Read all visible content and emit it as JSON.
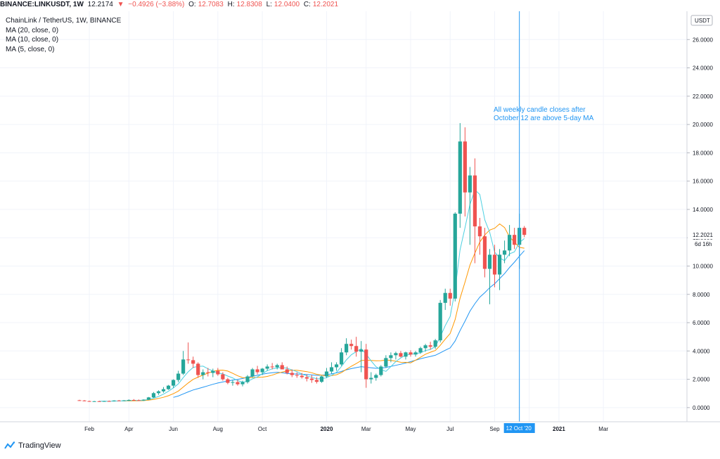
{
  "header": {
    "symbol": "BINANCE:LINKUSDT, 1W",
    "last": "12.2174",
    "change_arrow": "▼",
    "change": "−0.4926 (−3.88%)",
    "o_label": "O:",
    "o": "12.7083",
    "h_label": "H:",
    "h": "12.8308",
    "l_label": "L:",
    "l": "12.0400",
    "c_label": "C:",
    "c": "12.2021"
  },
  "legend": {
    "title": "ChainLink / TetherUS, 1W, BINANCE",
    "ma20": "MA (20, close, 0)",
    "ma10": "MA (10, close, 0)",
    "ma5": "MA (5, close, 0)"
  },
  "currency_button": "USDT",
  "price_tag": "12.2021",
  "countdown": "6d 16h",
  "crosshair_label": "12 Oct '20",
  "annotation": [
    "All weekly candle closes after",
    "October 12 are above 5-day MA"
  ],
  "brand": "TradingView",
  "colors": {
    "up": "#26a69a",
    "down": "#ef5350",
    "ma20": "#2196f3",
    "ma10": "#ff9800",
    "ma5": "#4dd0e1",
    "crosshair": "#2196f3",
    "grid": "#f0f3fa"
  },
  "chart_data": {
    "type": "candlestick",
    "ylim": [
      -1.0,
      28.0
    ],
    "ytick_labels": [
      "0.0000",
      "2.0000",
      "4.0000",
      "6.0000",
      "8.0000",
      "10.0000",
      "12.0000",
      "14.0000",
      "16.0000",
      "18.0000",
      "20.0000",
      "22.0000",
      "24.0000",
      "26.0000"
    ],
    "xtick_labels": [
      {
        "label": "Feb",
        "i": 2
      },
      {
        "label": "Apr",
        "i": 10
      },
      {
        "label": "Jun",
        "i": 19
      },
      {
        "label": "Aug",
        "i": 28
      },
      {
        "label": "Oct",
        "i": 37
      },
      {
        "label": "2020",
        "i": 50,
        "bold": true
      },
      {
        "label": "Mar",
        "i": 58
      },
      {
        "label": "May",
        "i": 67
      },
      {
        "label": "Jul",
        "i": 75
      },
      {
        "label": "Sep",
        "i": 84
      },
      {
        "label": "v",
        "i": 91
      },
      {
        "label": "2021",
        "i": 97,
        "bold": true
      },
      {
        "label": "Mar",
        "i": 106
      }
    ],
    "crosshair_index": 89,
    "series": [
      {
        "name": "LINKUSDT",
        "ohlc": [
          [
            0.52,
            0.55,
            0.47,
            0.5
          ],
          [
            0.5,
            0.53,
            0.44,
            0.46
          ],
          [
            0.46,
            0.49,
            0.42,
            0.44
          ],
          [
            0.44,
            0.47,
            0.41,
            0.45
          ],
          [
            0.45,
            0.48,
            0.42,
            0.43
          ],
          [
            0.43,
            0.48,
            0.41,
            0.46
          ],
          [
            0.46,
            0.5,
            0.43,
            0.45
          ],
          [
            0.45,
            0.52,
            0.43,
            0.5
          ],
          [
            0.5,
            0.54,
            0.46,
            0.48
          ],
          [
            0.48,
            0.53,
            0.45,
            0.51
          ],
          [
            0.51,
            0.58,
            0.47,
            0.54
          ],
          [
            0.54,
            0.6,
            0.49,
            0.52
          ],
          [
            0.52,
            0.57,
            0.48,
            0.5
          ],
          [
            0.5,
            0.58,
            0.47,
            0.56
          ],
          [
            0.56,
            0.75,
            0.53,
            0.72
          ],
          [
            0.72,
            1.1,
            0.68,
            1.02
          ],
          [
            1.02,
            1.22,
            0.9,
            1.15
          ],
          [
            1.15,
            1.45,
            1.05,
            1.3
          ],
          [
            1.3,
            1.6,
            1.25,
            1.55
          ],
          [
            1.55,
            2.0,
            1.4,
            1.95
          ],
          [
            1.95,
            2.6,
            1.8,
            2.4
          ],
          [
            2.4,
            4.0,
            2.3,
            3.4
          ],
          [
            3.4,
            4.6,
            3.1,
            3.35
          ],
          [
            3.35,
            3.6,
            2.8,
            3.1
          ],
          [
            3.1,
            3.2,
            2.1,
            2.3
          ],
          [
            2.3,
            2.7,
            2.0,
            2.5
          ],
          [
            2.5,
            2.8,
            2.2,
            2.45
          ],
          [
            2.45,
            2.75,
            2.15,
            2.6
          ],
          [
            2.6,
            2.8,
            2.25,
            2.35
          ],
          [
            2.35,
            2.5,
            1.9,
            2.0
          ],
          [
            2.0,
            2.1,
            1.65,
            1.75
          ],
          [
            1.75,
            1.95,
            1.55,
            1.8
          ],
          [
            1.8,
            1.95,
            1.55,
            1.65
          ],
          [
            1.65,
            1.9,
            1.5,
            1.8
          ],
          [
            1.8,
            2.3,
            1.7,
            2.2
          ],
          [
            2.2,
            2.8,
            2.1,
            2.7
          ],
          [
            2.7,
            2.95,
            2.35,
            2.5
          ],
          [
            2.5,
            2.8,
            2.3,
            2.75
          ],
          [
            2.75,
            3.05,
            2.6,
            2.9
          ],
          [
            2.9,
            3.15,
            2.7,
            2.85
          ],
          [
            2.85,
            3.1,
            2.7,
            3.0
          ],
          [
            3.0,
            3.2,
            2.8,
            2.7
          ],
          [
            2.7,
            2.9,
            2.35,
            2.45
          ],
          [
            2.45,
            2.7,
            2.15,
            2.3
          ],
          [
            2.3,
            2.5,
            2.1,
            2.25
          ],
          [
            2.25,
            2.45,
            2.05,
            2.15
          ],
          [
            2.15,
            2.35,
            1.85,
            2.05
          ],
          [
            2.05,
            2.3,
            1.75,
            1.95
          ],
          [
            1.95,
            2.15,
            1.7,
            1.82
          ],
          [
            1.82,
            2.25,
            1.75,
            2.2
          ],
          [
            2.2,
            2.8,
            2.1,
            2.55
          ],
          [
            2.55,
            3.2,
            2.4,
            2.85
          ],
          [
            2.85,
            3.2,
            2.6,
            3.05
          ],
          [
            3.05,
            4.2,
            2.95,
            3.9
          ],
          [
            3.9,
            4.9,
            3.7,
            4.5
          ],
          [
            4.5,
            4.8,
            4.1,
            4.35
          ],
          [
            4.35,
            5.0,
            3.6,
            3.95
          ],
          [
            3.95,
            4.7,
            2.5,
            4.1
          ],
          [
            4.1,
            4.5,
            1.4,
            2.0
          ],
          [
            2.0,
            2.5,
            1.7,
            2.1
          ],
          [
            2.1,
            2.4,
            1.9,
            2.3
          ],
          [
            2.3,
            3.0,
            2.2,
            2.9
          ],
          [
            2.9,
            3.7,
            2.8,
            3.5
          ],
          [
            3.5,
            3.9,
            3.2,
            3.7
          ],
          [
            3.7,
            3.95,
            3.4,
            3.85
          ],
          [
            3.85,
            4.0,
            3.55,
            3.6
          ],
          [
            3.6,
            3.95,
            3.4,
            3.9
          ],
          [
            3.9,
            4.05,
            3.6,
            3.75
          ],
          [
            3.75,
            4.0,
            3.6,
            3.9
          ],
          [
            3.9,
            4.3,
            3.8,
            4.2
          ],
          [
            4.2,
            4.5,
            3.95,
            4.4
          ],
          [
            4.4,
            4.65,
            4.1,
            4.3
          ],
          [
            4.3,
            4.85,
            4.15,
            4.75
          ],
          [
            4.75,
            7.6,
            4.6,
            7.4
          ],
          [
            7.4,
            8.4,
            6.9,
            8.1
          ],
          [
            8.1,
            8.4,
            7.2,
            7.7
          ],
          [
            7.7,
            13.8,
            7.5,
            13.7
          ],
          [
            13.7,
            20.1,
            12.7,
            18.8
          ],
          [
            18.8,
            19.8,
            13.5,
            15.2
          ],
          [
            15.2,
            17.0,
            11.5,
            16.4
          ],
          [
            16.4,
            17.6,
            10.2,
            12.8
          ],
          [
            12.8,
            13.4,
            10.8,
            12.1
          ],
          [
            12.1,
            12.7,
            9.2,
            9.8
          ],
          [
            9.8,
            11.2,
            7.3,
            10.8
          ],
          [
            10.8,
            11.5,
            8.5,
            9.4
          ],
          [
            9.4,
            11.2,
            8.3,
            10.8
          ],
          [
            10.8,
            11.8,
            10.2,
            11.1
          ],
          [
            11.1,
            12.9,
            10.7,
            12.2
          ],
          [
            12.2,
            12.7,
            11.2,
            11.5
          ],
          [
            11.5,
            13.7,
            9.8,
            12.7
          ],
          [
            12.7,
            12.83,
            12.04,
            12.2
          ]
        ]
      },
      {
        "name": "MA (5, close, 0)"
      },
      {
        "name": "MA (10, close, 0)"
      },
      {
        "name": "MA (20, close, 0)"
      }
    ]
  }
}
